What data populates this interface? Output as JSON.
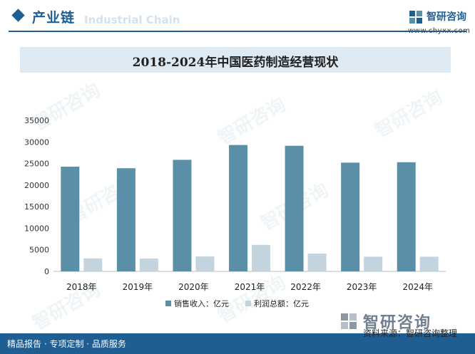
{
  "header": {
    "title": "产业链",
    "subtitle": "Industrial Chain"
  },
  "brand": {
    "name": "智研咨询",
    "url": "www.chyxx.com",
    "color": "#1f5e93"
  },
  "footer": {
    "slogan": "精品报告 · 专项定制 · 品质服务",
    "brand": "智研咨询",
    "source": "资料来源：智研咨询整理"
  },
  "watermark": "智研咨询",
  "chart_data": {
    "type": "bar",
    "title": "2018-2024年中国医药制造经营现状",
    "categories": [
      "2018年",
      "2019年",
      "2020年",
      "2021年",
      "2022年",
      "2023年",
      "2024年"
    ],
    "series": [
      {
        "name": "销售收入：亿元",
        "color": "#5b8fa8",
        "values": [
          24265,
          23909,
          25857,
          29289,
          29111,
          25206,
          25299
        ]
      },
      {
        "name": "利润总额：亿元",
        "color": "#c3d4df",
        "values": [
          3000,
          2980,
          3450,
          6140,
          4120,
          3400,
          3400
        ]
      }
    ],
    "ylim": [
      0,
      35000
    ],
    "yticks": [
      0,
      5000,
      10000,
      15000,
      20000,
      25000,
      30000,
      35000
    ],
    "xlabel": "",
    "ylabel": "",
    "legend": "bottom"
  }
}
